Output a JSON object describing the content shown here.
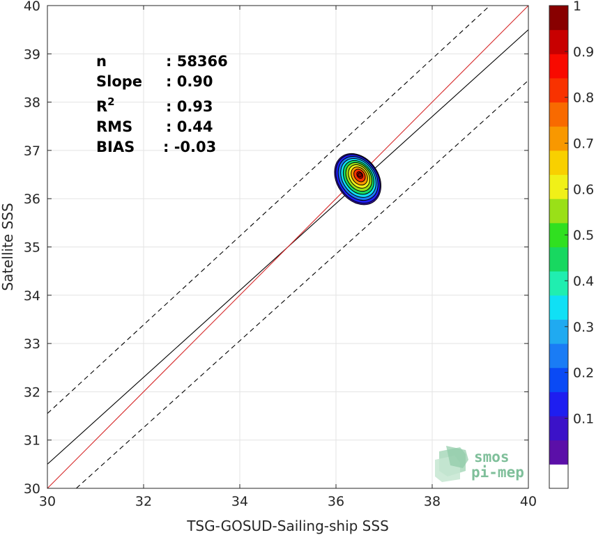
{
  "chart_data": {
    "type": "heatmap",
    "xlabel": "TSG-GOSUD-Sailing-ship SSS",
    "ylabel": "Satellite SSS",
    "xlim": [
      30,
      40
    ],
    "ylim": [
      30,
      40
    ],
    "x_ticks": [
      "30",
      "32",
      "34",
      "36",
      "38",
      "40"
    ],
    "y_ticks": [
      "30",
      "31",
      "32",
      "33",
      "34",
      "35",
      "36",
      "37",
      "38",
      "39",
      "40"
    ],
    "grid": true,
    "stats": [
      {
        "key": "n",
        "sup": "",
        "value": ": 58366"
      },
      {
        "key": "Slope",
        "sup": "",
        "value": ": 0.90"
      },
      {
        "key": "R",
        "sup": "2",
        "value": ": 0.93"
      },
      {
        "key": "RMS",
        "sup": "",
        "value": ": 0.44"
      },
      {
        "key": "BIAS",
        "sup": "",
        "value": ": -0.03"
      }
    ],
    "lines": {
      "one_to_one": {
        "x": [
          30,
          40
        ],
        "y": [
          30,
          40
        ],
        "color": "#d62728"
      },
      "regression": {
        "x": [
          30,
          40
        ],
        "y": [
          30.5,
          39.5
        ],
        "color": "#000000"
      },
      "upper_bound": {
        "x": [
          30,
          39.2
        ],
        "y": [
          31.55,
          40
        ],
        "color": "#000000",
        "style": "dashed"
      },
      "lower_bound": {
        "x": [
          30.6,
          40
        ],
        "y": [
          30,
          38.45
        ],
        "color": "#000000",
        "style": "dashed"
      }
    },
    "density": {
      "center": [
        36.5,
        36.5
      ],
      "outer_extent_x": [
        36.0,
        36.9
      ],
      "outer_extent_y": [
        35.8,
        37.0
      ],
      "levels": [
        0.05,
        0.1,
        0.2,
        0.3,
        0.4,
        0.5,
        0.6,
        0.7,
        0.8,
        0.9,
        0.95
      ]
    },
    "colorbar": {
      "ticks": [
        "0.1",
        "0.2",
        "0.3",
        "0.4",
        "0.5",
        "0.6",
        "0.7",
        "0.8",
        "0.9",
        "1"
      ],
      "colors": [
        "#ffffff",
        "#5b0fa8",
        "#3b12c8",
        "#1e1ef0",
        "#0a4af5",
        "#1a7cf5",
        "#20aaf0",
        "#10e0f5",
        "#20eeb0",
        "#18d860",
        "#30e020",
        "#9ae018",
        "#f0f018",
        "#f8d000",
        "#f89800",
        "#f86a00",
        "#f83200",
        "#f80a00",
        "#c80000",
        "#880000"
      ]
    }
  },
  "logo": {
    "line1": "smos",
    "line2": "pi-mep"
  }
}
